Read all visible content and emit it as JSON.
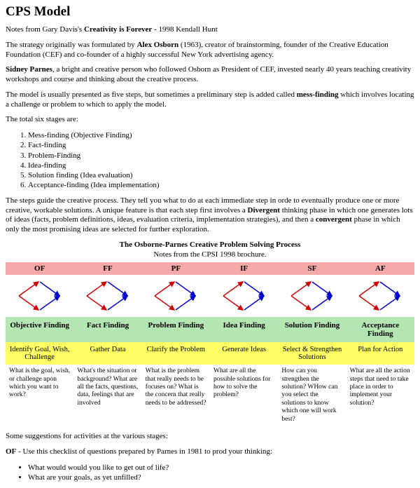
{
  "title": "CPS Model",
  "notes_prefix": "Notes from Gary Davis's ",
  "notes_book": "Creativity is Forever",
  "notes_suffix": " - 1998 Kendall Hunt",
  "para1_a": "The strategy originally was formulated by ",
  "para1_name": "Alex Osborn",
  "para1_b": " (1963), creator of brainstorming, founder of the Creative Education Foundation (CEF) and co-founder of a highly successful New York advertising agency.",
  "para2_name": "Sidney Parnes",
  "para2_b": ", a bright and creative person who followed Osborn as President of CEF, invested nearly 40 years teaching creativity workshops and course and thinking about the creative process.",
  "para3_a": "The model is usually presented as five steps, but sometimes a preliminary step is added called ",
  "para3_term": "mess-finding",
  "para3_b": " which involves locating a challenge or problem to which to apply the model.",
  "stages_intro": "The total six stages are:",
  "stages": [
    "Mess-finding (Objective Finding)",
    "Fact-finding",
    "Problem-Finding",
    "Idea-finding",
    "Solution finding (Idea evaluation)",
    "Acceptance-finding (Idea implementation)"
  ],
  "para4_a": "The steps guide the creative process. They tell you what to do at each immediate step in orde to eventually produce one or more creative, workable solutions. A unique feature is that each step first involves a ",
  "para4_term1": "Divergent",
  "para4_b": " thinking phase in which one generates lots of ideas (facts, problem definitions, ideas, evaluation criteria, implementation strategies), and then a ",
  "para4_term2": "convergent",
  "para4_c": " phase in which only the most promising ideas are selected for further exploration.",
  "table_title": "The Osborne-Parnes Creative Problem Solving Process",
  "table_sub": "Notes from the CPSI 1998 brochure.",
  "cols": [
    {
      "abbr": "OF",
      "name": "Objective Finding",
      "action": "Identify Goal, Wish, Challenge",
      "q": "What is the goal, wish, or challenge upon which you want to work?"
    },
    {
      "abbr": "FF",
      "name": "Fact Finding",
      "action": "Gather Data",
      "q": "What's the situation or background? What are all the facts, questions, data, feelings that are involved"
    },
    {
      "abbr": "PF",
      "name": "Problem Finding",
      "action": "Clarify the Problem",
      "q": "What is the problem that really needs to be focuses on? What is the concern that really needs to be addressed?"
    },
    {
      "abbr": "IF",
      "name": "Idea Finding",
      "action": "Generate Ideas",
      "q": "What are all the possible solutions for how to solve the problem?"
    },
    {
      "abbr": "SF",
      "name": "Solution Finding",
      "action": "Select & Strengthen Solutions",
      "q": "How can you strengthen the solution? WHow can you select the solutions to know which one will work best?"
    },
    {
      "abbr": "AF",
      "name": "Acceptance Finding",
      "action": "Plan for Action",
      "q": "What are all the action steps that need to take place in order to implement your solution?"
    }
  ],
  "colors": {
    "abbr_bg": "#f5a9a9",
    "name_bg": "#b3e6b3",
    "action_bg": "#ffff66",
    "diamond_stroke_div": "#cc0000",
    "diamond_stroke_conv": "#0000cc"
  },
  "suggestions_intro": "Some suggestions for activities at the various stages:",
  "of_label": "OF",
  "of_text": " - Use this checklist of questions prepared by Parnes in 1981 to prod your thinking:",
  "of_questions": [
    "What would would you like to get out of life?",
    "What are your goals, as yet unfilled?"
  ]
}
